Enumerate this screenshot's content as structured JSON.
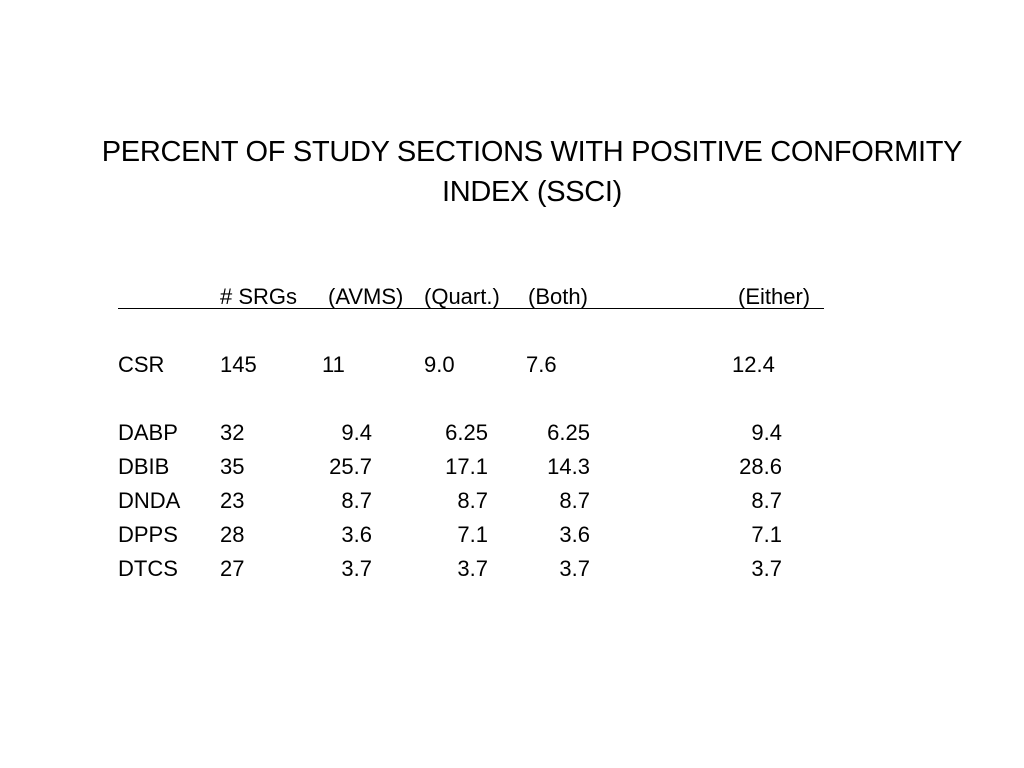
{
  "title": {
    "line1": "PERCENT OF STUDY SECTIONS WITH POSITIVE CONFORMITY",
    "line2": "INDEX (SSCI)"
  },
  "table": {
    "headers": [
      "",
      "# SRGs",
      "(AVMS)",
      "(Quart.)",
      "(Both)",
      "(Either)"
    ],
    "csr": [
      "CSR",
      "145",
      "11",
      "9.0",
      "7.6",
      "12.4"
    ],
    "rows": [
      [
        "DABP",
        "32",
        "9.4",
        "6.25",
        "6.25",
        "9.4"
      ],
      [
        "DBIB",
        "35",
        "25.7",
        "17.1",
        "14.3",
        "28.6"
      ],
      [
        "DNDA",
        "23",
        "8.7",
        "8.7",
        "8.7",
        "8.7"
      ],
      [
        "DPPS",
        "28",
        "3.6",
        "7.1",
        "3.6",
        "7.1"
      ],
      [
        "DTCS",
        "27",
        "3.7",
        "3.7",
        "3.7",
        "3.7"
      ]
    ]
  }
}
